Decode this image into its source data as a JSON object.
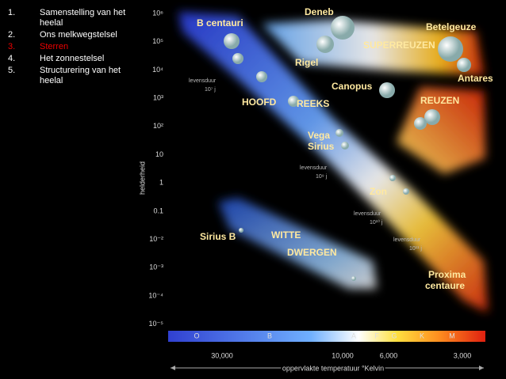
{
  "sidebar": {
    "items": [
      {
        "number": "1.",
        "text": "Samenstelling van het heelal"
      },
      {
        "number": "2.",
        "text": "Ons melkwegstelsel"
      },
      {
        "number": "3.",
        "text": "Sterren"
      },
      {
        "number": "4.",
        "text": "Het zonnestelsel"
      },
      {
        "number": "5.",
        "text": "Structurering van het heelal"
      }
    ]
  },
  "diagram": {
    "y_axis_label": "helderheid",
    "y_ticks": [
      "10⁶",
      "10⁵",
      "10⁴",
      "10³",
      "10²",
      "10",
      "1",
      "0.1",
      "10⁻²",
      "10⁻³",
      "10⁻⁴",
      "10⁻⁵"
    ],
    "spectral_classes": [
      "O",
      "B",
      "A",
      "F",
      "G",
      "K",
      "M"
    ],
    "x_ticks": [
      "30,000",
      "10,000",
      "6,000",
      "3,000"
    ],
    "x_axis_label": "oppervlakte temperatuur °Kelvin",
    "labels": [
      "B centauri",
      "Deneb",
      "Betelgeuze",
      "SUPERREUZEN",
      "Rigel",
      "Antares",
      "Canopus",
      "HOOFD",
      "REEKS",
      "REUZEN",
      "Vega",
      "Sirius",
      "Zon",
      "Sirius B",
      "WITTE",
      "DWERGEN",
      "Proxima",
      "centaure"
    ],
    "lifetimes": [
      {
        "label": "levensduur",
        "value": "10⁷ j"
      },
      {
        "label": "levensduur",
        "value": "10⁹ j"
      },
      {
        "label": "levensduur",
        "value": "10¹⁰ j"
      },
      {
        "label": "levensduur",
        "value": "10¹¹ j"
      }
    ]
  }
}
